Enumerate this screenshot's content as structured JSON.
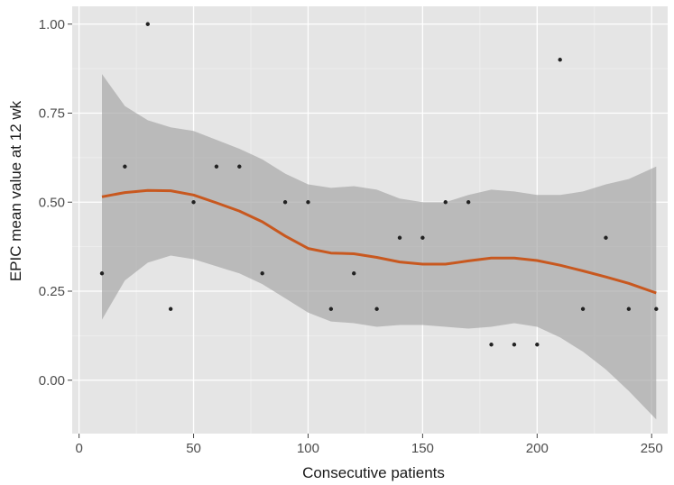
{
  "chart_data": {
    "type": "scatter",
    "title": "",
    "xlabel": "Consecutive patients",
    "ylabel": "EPIC mean value at 12 wk",
    "xlim": [
      -3,
      257
    ],
    "ylim": [
      -0.15,
      1.05
    ],
    "x_ticks": [
      0,
      50,
      100,
      150,
      200,
      250
    ],
    "y_ticks": [
      0.0,
      0.25,
      0.5,
      0.75,
      1.0
    ],
    "y_tick_labels": [
      "0.00",
      "0.25",
      "0.50",
      "0.75",
      "1.00"
    ],
    "grid": true,
    "legend": "none",
    "points": [
      {
        "x": 10,
        "y": 0.3
      },
      {
        "x": 20,
        "y": 0.6
      },
      {
        "x": 30,
        "y": 1.0
      },
      {
        "x": 40,
        "y": 0.2
      },
      {
        "x": 50,
        "y": 0.5
      },
      {
        "x": 60,
        "y": 0.6
      },
      {
        "x": 70,
        "y": 0.6
      },
      {
        "x": 80,
        "y": 0.3
      },
      {
        "x": 90,
        "y": 0.5
      },
      {
        "x": 100,
        "y": 0.5
      },
      {
        "x": 110,
        "y": 0.2
      },
      {
        "x": 120,
        "y": 0.3
      },
      {
        "x": 130,
        "y": 0.2
      },
      {
        "x": 140,
        "y": 0.4
      },
      {
        "x": 150,
        "y": 0.4
      },
      {
        "x": 160,
        "y": 0.5
      },
      {
        "x": 170,
        "y": 0.5
      },
      {
        "x": 180,
        "y": 0.1
      },
      {
        "x": 190,
        "y": 0.1
      },
      {
        "x": 200,
        "y": 0.1
      },
      {
        "x": 210,
        "y": 0.9
      },
      {
        "x": 220,
        "y": 0.2
      },
      {
        "x": 230,
        "y": 0.4
      },
      {
        "x": 240,
        "y": 0.2
      },
      {
        "x": 252,
        "y": 0.2
      }
    ],
    "smooth": {
      "x": [
        10,
        20,
        30,
        40,
        50,
        60,
        70,
        80,
        90,
        100,
        110,
        120,
        130,
        140,
        150,
        160,
        170,
        180,
        190,
        200,
        210,
        220,
        230,
        240,
        252
      ],
      "y": [
        0.515,
        0.527,
        0.533,
        0.532,
        0.52,
        0.498,
        0.475,
        0.445,
        0.405,
        0.37,
        0.357,
        0.355,
        0.345,
        0.332,
        0.326,
        0.326,
        0.335,
        0.343,
        0.343,
        0.336,
        0.323,
        0.307,
        0.29,
        0.272,
        0.245
      ],
      "lower": [
        0.17,
        0.28,
        0.33,
        0.35,
        0.34,
        0.32,
        0.3,
        0.27,
        0.23,
        0.19,
        0.165,
        0.16,
        0.15,
        0.155,
        0.155,
        0.15,
        0.145,
        0.15,
        0.16,
        0.15,
        0.12,
        0.08,
        0.03,
        -0.03,
        -0.11
      ],
      "upper": [
        0.86,
        0.77,
        0.73,
        0.71,
        0.7,
        0.675,
        0.65,
        0.62,
        0.58,
        0.55,
        0.54,
        0.545,
        0.535,
        0.51,
        0.5,
        0.5,
        0.52,
        0.535,
        0.53,
        0.52,
        0.52,
        0.53,
        0.55,
        0.565,
        0.6
      ]
    },
    "colors": {
      "panel": "#e5e5e5",
      "grid_major": "#ffffff",
      "grid_minor": "#f0f0f0",
      "ribbon": "#a8a8a8",
      "line": "#c8581f",
      "points": "#222222"
    }
  }
}
